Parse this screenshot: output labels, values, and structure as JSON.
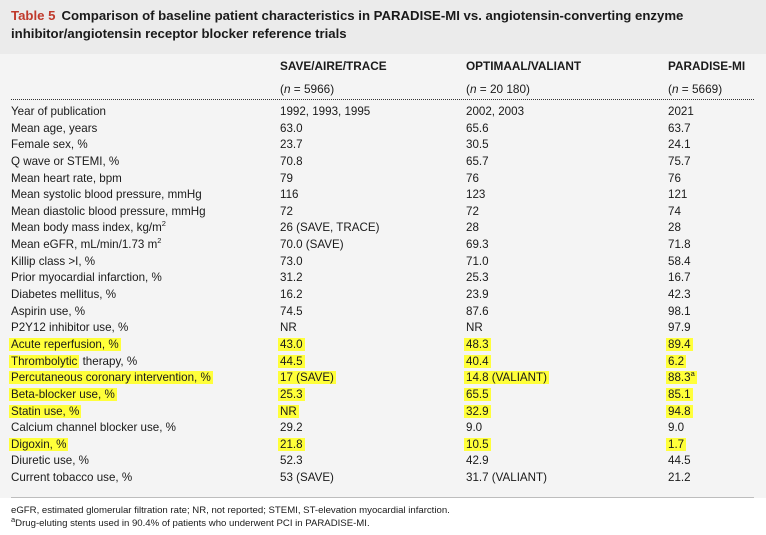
{
  "table": {
    "number": "Table 5",
    "title": "Comparison of baseline patient characteristics in PARADISE-MI vs. angiotensin-converting enzyme inhibitor/angiotensin receptor blocker reference trials"
  },
  "columns": [
    {
      "name": "SAVE/AIRE/TRACE",
      "n_prefix": "(",
      "n_label": "n",
      "n_value": " = 5966)"
    },
    {
      "name": "OPTIMAAL/VALIANT",
      "n_prefix": "(",
      "n_label": "n",
      "n_value": " = 20 180)"
    },
    {
      "name": "PARADISE-MI",
      "n_prefix": "(",
      "n_label": "n",
      "n_value": " = 5669)"
    }
  ],
  "rows": [
    {
      "label": "Year of publication",
      "v": [
        "1992, 1993, 1995",
        "2002, 2003",
        "2021"
      ],
      "highlight": [
        false,
        false,
        false,
        false
      ]
    },
    {
      "label": "Mean age, years",
      "v": [
        "63.0",
        "65.6",
        "63.7"
      ],
      "highlight": [
        false,
        false,
        false,
        false
      ]
    },
    {
      "label": "Female sex, %",
      "v": [
        "23.7",
        "30.5",
        "24.1"
      ],
      "highlight": [
        false,
        false,
        false,
        false
      ]
    },
    {
      "label": "Q wave or STEMI, %",
      "v": [
        "70.8",
        "65.7",
        "75.7"
      ],
      "highlight": [
        false,
        false,
        false,
        false
      ]
    },
    {
      "label": "Mean heart rate, bpm",
      "v": [
        "79",
        "76",
        "76"
      ],
      "highlight": [
        false,
        false,
        false,
        false
      ]
    },
    {
      "label": "Mean systolic blood pressure, mmHg",
      "v": [
        "116",
        "123",
        "121"
      ],
      "highlight": [
        false,
        false,
        false,
        false
      ]
    },
    {
      "label": "Mean diastolic blood pressure, mmHg",
      "v": [
        "72",
        "72",
        "74"
      ],
      "highlight": [
        false,
        false,
        false,
        false
      ]
    },
    {
      "label": "Mean body mass index, kg/m",
      "label_sup": "2",
      "v": [
        "26 (SAVE, TRACE)",
        "28",
        "28"
      ],
      "highlight": [
        false,
        false,
        false,
        false
      ]
    },
    {
      "label": "Mean eGFR, mL/min/1.73 m",
      "label_sup": "2",
      "v": [
        "70.0 (SAVE)",
        "69.3",
        "71.8"
      ],
      "highlight": [
        false,
        false,
        false,
        false
      ]
    },
    {
      "label": "Killip class >I, %",
      "v": [
        "73.0",
        "71.0",
        "58.4"
      ],
      "highlight": [
        false,
        false,
        false,
        false
      ]
    },
    {
      "label": "Prior myocardial infarction, %",
      "v": [
        "31.2",
        "25.3",
        "16.7"
      ],
      "highlight": [
        false,
        false,
        false,
        false
      ]
    },
    {
      "label": "Diabetes mellitus, %",
      "v": [
        "16.2",
        "23.9",
        "42.3"
      ],
      "highlight": [
        false,
        false,
        false,
        false
      ]
    },
    {
      "label": "Aspirin use, %",
      "v": [
        "74.5",
        "87.6",
        "98.1"
      ],
      "highlight": [
        false,
        false,
        false,
        false
      ]
    },
    {
      "label": "P2Y12 inhibitor use, %",
      "v": [
        "NR",
        "NR",
        "97.9"
      ],
      "highlight": [
        false,
        false,
        false,
        false
      ]
    },
    {
      "label": "Acute reperfusion, %",
      "v": [
        "43.0",
        "48.3",
        "89.4"
      ],
      "highlight": [
        true,
        true,
        true,
        true
      ]
    },
    {
      "label_hl": "Thrombolytic",
      "label": " therapy, %",
      "v": [
        "44.5",
        "40.4",
        "6.2"
      ],
      "highlight": [
        true,
        true,
        true,
        true
      ]
    },
    {
      "label": "Percutaneous coronary intervention, %",
      "v": [
        "17 (SAVE)",
        "14.8 (VALIANT)",
        "88.3"
      ],
      "v3_sup": "a",
      "highlight": [
        true,
        true,
        true,
        true
      ]
    },
    {
      "label": "Beta-blocker use, %",
      "v": [
        "25.3",
        "65.5",
        "85.1"
      ],
      "highlight": [
        true,
        true,
        true,
        true
      ]
    },
    {
      "label": "Statin use, %",
      "v": [
        "NR",
        "32.9",
        "94.8"
      ],
      "highlight": [
        true,
        true,
        true,
        true
      ]
    },
    {
      "label": "Calcium channel blocker use, %",
      "v": [
        "29.2",
        "9.0",
        "9.0"
      ],
      "highlight": [
        false,
        false,
        false,
        false
      ]
    },
    {
      "label": "Digoxin, %",
      "v": [
        "21.8",
        "10.5",
        "1.7"
      ],
      "highlight": [
        true,
        true,
        true,
        true
      ]
    },
    {
      "label": "Diuretic use, %",
      "v": [
        "52.3",
        "42.9",
        "44.5"
      ],
      "highlight": [
        false,
        false,
        false,
        false
      ]
    },
    {
      "label": "Current tobacco use, %",
      "v": [
        "53 (SAVE)",
        "31.7 (VALIANT)",
        "21.2"
      ],
      "highlight": [
        false,
        false,
        false,
        false
      ]
    }
  ],
  "footnotes": {
    "abbrev": "eGFR, estimated glomerular filtration rate; NR, not reported; STEMI, ST-elevation myocardial infarction.",
    "a_mark": "a",
    "a_text": "Drug-eluting stents used in 90.4% of patients who underwent PCI in PARADISE-MI."
  },
  "colors": {
    "highlight": "#ffff3a",
    "table_number": "#c0392b",
    "title_band": "#ebebeb",
    "table_band": "#f4f4f4"
  }
}
